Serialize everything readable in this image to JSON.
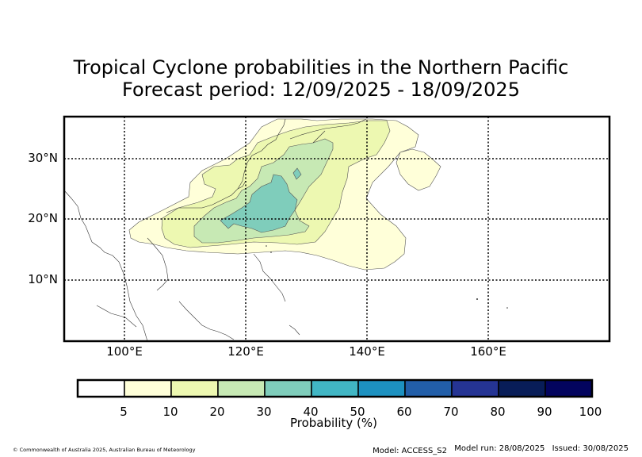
{
  "title_line1": "Tropical Cyclone probabilities in the Northern Pacific",
  "title_line2": "Forecast period: 12/09/2025 - 18/09/2025",
  "map": {
    "lon_range": [
      90,
      180
    ],
    "lat_range": [
      0,
      37
    ],
    "lat_gridlines": [
      10,
      20,
      30
    ],
    "lon_gridlines": [
      100,
      120,
      140,
      160
    ],
    "lat_labels": [
      "10°N",
      "20°N",
      "30°N"
    ],
    "lon_labels": [
      "100°E",
      "120°E",
      "140°E",
      "160°E"
    ],
    "grid": "dotted",
    "regions": [
      {
        "name": "5-10%",
        "color": "#ffffd9"
      },
      {
        "name": "10-20%",
        "color": "#edf8b1"
      },
      {
        "name": "20-30%",
        "color": "#c7e9b4"
      },
      {
        "name": "30-40%",
        "color": "#7fcdbb"
      }
    ]
  },
  "colorbar": {
    "colors": [
      "#ffffff",
      "#ffffd9",
      "#edf8b1",
      "#c7e9b4",
      "#7fcdbb",
      "#41b6c4",
      "#1d91c0",
      "#225ea8",
      "#253494",
      "#081d58",
      "#03045e"
    ],
    "ticks": [
      "5",
      "10",
      "20",
      "30",
      "40",
      "50",
      "60",
      "70",
      "80",
      "90",
      "100"
    ],
    "label": "Probability (%)"
  },
  "copyright": "© Commonwealth of Australia 2025, Australian Bureau of Meteorology",
  "footer": {
    "model": "Model: ACCESS_S2",
    "model_run": "Model run: 28/08/2025",
    "issued": "Issued: 30/08/2025"
  }
}
